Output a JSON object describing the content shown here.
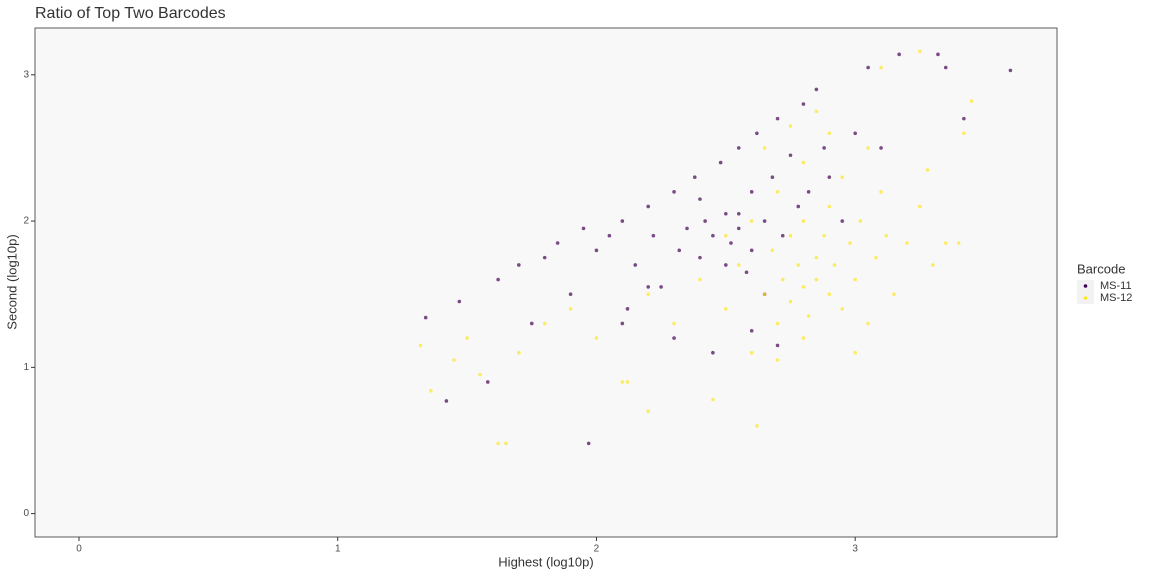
{
  "chart_data": {
    "type": "scatter",
    "title": "Ratio of Top Two Barcodes",
    "x_label": "Highest (log10p)",
    "y_label": "Second (log10p)",
    "legend_title": "Barcode",
    "xlim": [
      -0.17,
      3.78
    ],
    "ylim": [
      -0.16,
      3.32
    ],
    "xticks": [
      0,
      1,
      2,
      3
    ],
    "yticks": [
      0,
      1,
      2,
      3
    ],
    "grid": false,
    "legend": "right",
    "series": [
      {
        "name": "MS-11",
        "color": "#440154",
        "x": [
          1.34,
          1.42,
          1.47,
          1.58,
          1.62,
          1.7,
          1.75,
          1.8,
          1.85,
          1.9,
          1.95,
          1.97,
          2.0,
          2.05,
          2.1,
          2.12,
          2.15,
          2.2,
          2.22,
          2.25,
          2.3,
          2.32,
          2.35,
          2.38,
          2.4,
          2.42,
          2.45,
          2.48,
          2.5,
          2.5,
          2.52,
          2.55,
          2.55,
          2.58,
          2.6,
          2.6,
          2.62,
          2.65,
          2.65,
          2.68,
          2.7,
          2.72,
          2.75,
          2.78,
          2.8,
          2.82,
          2.85,
          2.88,
          2.9,
          2.95,
          3.0,
          3.05,
          3.1,
          3.17,
          3.32,
          3.35,
          3.42,
          3.6,
          2.3,
          2.45,
          2.2,
          2.6,
          2.4,
          2.7,
          2.1,
          2.55
        ],
        "y": [
          1.34,
          0.77,
          1.45,
          0.9,
          1.6,
          1.7,
          1.3,
          1.75,
          1.85,
          1.5,
          1.95,
          0.48,
          1.8,
          1.9,
          2.0,
          1.4,
          1.7,
          2.1,
          1.9,
          1.55,
          2.2,
          1.8,
          1.95,
          2.3,
          1.75,
          2.0,
          1.9,
          2.4,
          2.05,
          1.7,
          1.85,
          2.5,
          1.95,
          1.65,
          2.2,
          1.8,
          2.6,
          2.0,
          1.5,
          2.3,
          2.7,
          1.9,
          2.45,
          2.1,
          2.8,
          2.2,
          2.9,
          2.5,
          2.3,
          2.0,
          2.6,
          3.05,
          2.5,
          3.14,
          3.14,
          3.05,
          2.7,
          3.03,
          1.2,
          1.1,
          1.55,
          1.25,
          2.15,
          1.15,
          1.3,
          2.05
        ]
      },
      {
        "name": "MS-12",
        "color": "#FDE725",
        "x": [
          1.32,
          1.36,
          1.62,
          1.65,
          1.55,
          1.5,
          1.7,
          1.8,
          1.9,
          2.0,
          2.1,
          2.12,
          2.2,
          2.2,
          2.3,
          2.4,
          2.45,
          2.5,
          2.55,
          2.6,
          2.62,
          2.65,
          2.68,
          2.7,
          2.72,
          2.75,
          2.75,
          2.78,
          2.8,
          2.8,
          2.82,
          2.85,
          2.85,
          2.88,
          2.9,
          2.9,
          2.92,
          2.95,
          2.98,
          3.0,
          3.02,
          3.05,
          3.08,
          3.1,
          3.12,
          3.15,
          3.2,
          3.25,
          3.3,
          3.4,
          3.45,
          3.42,
          3.25,
          3.1,
          3.28,
          2.9,
          2.8,
          2.7,
          2.85,
          2.6,
          2.95,
          3.05,
          2.65,
          2.75,
          2.5,
          3.35,
          2.7,
          2.8,
          3.0,
          1.45
        ],
        "y": [
          1.15,
          0.84,
          0.48,
          0.48,
          0.95,
          1.2,
          1.1,
          1.3,
          1.4,
          1.2,
          0.9,
          0.9,
          0.7,
          1.5,
          1.3,
          1.6,
          0.78,
          1.4,
          1.7,
          1.1,
          0.6,
          1.5,
          1.8,
          1.3,
          1.6,
          1.9,
          1.45,
          1.7,
          1.55,
          2.0,
          1.35,
          1.75,
          1.6,
          1.9,
          1.5,
          2.1,
          1.7,
          1.4,
          1.85,
          1.6,
          2.0,
          1.3,
          1.75,
          2.2,
          1.9,
          1.5,
          1.85,
          2.1,
          1.7,
          1.85,
          2.82,
          2.6,
          3.16,
          3.05,
          2.35,
          2.6,
          2.4,
          2.2,
          2.75,
          2.0,
          2.3,
          2.5,
          2.5,
          2.65,
          1.9,
          1.85,
          1.05,
          1.2,
          1.1,
          1.05
        ]
      }
    ]
  }
}
